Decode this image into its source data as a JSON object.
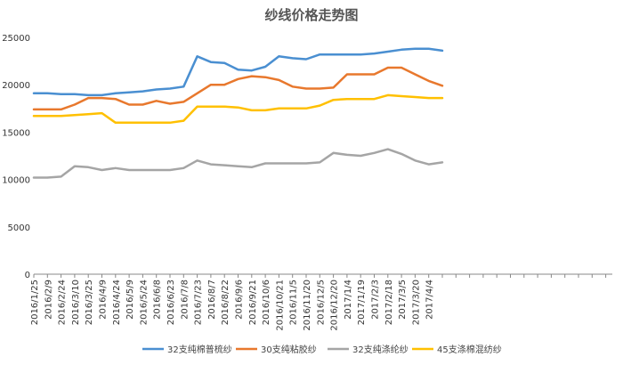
{
  "chart_data": {
    "type": "line",
    "title": "纱线价格走势图",
    "xlabel": "",
    "ylabel": "",
    "ylim": [
      0,
      25000
    ],
    "yticks": [
      0,
      5000,
      10000,
      15000,
      20000,
      25000
    ],
    "y_tick_labels": [
      "0",
      "5000",
      "10000",
      "15000",
      "20000",
      "25000"
    ],
    "grid": false,
    "legend_position": "bottom",
    "x_tick_labels": [
      "2016/1/25",
      "2016/2/9",
      "2016/2/24",
      "2016/3/10",
      "2016/3/25",
      "2016/4/9",
      "2016/4/24",
      "2016/5/9",
      "2016/5/24",
      "2016/6/8",
      "2016/6/23",
      "2016/7/8",
      "2016/7/23",
      "2016/8/7",
      "2016/8/22",
      "2016/9/6",
      "2016/9/21",
      "2016/10/6",
      "2016/10/21",
      "2016/11/5",
      "2016/11/20",
      "2016/12/5",
      "2016/12/20",
      "2017/1/4",
      "2017/1/19",
      "2017/2/3",
      "2017/2/18",
      "2017/3/5",
      "2017/3/20",
      "2017/4/4"
    ],
    "x": [
      "2016/1/25",
      "2016/2/9",
      "2016/2/24",
      "2016/3/10",
      "2016/3/25",
      "2016/4/9",
      "2016/4/24",
      "2016/5/9",
      "2016/5/24",
      "2016/6/8",
      "2016/6/23",
      "2016/7/8",
      "2016/7/23",
      "2016/8/7",
      "2016/8/22",
      "2016/9/6",
      "2016/9/21",
      "2016/10/6",
      "2016/10/21",
      "2016/11/5",
      "2016/11/20",
      "2016/12/5",
      "2016/12/20",
      "2017/1/4",
      "2017/1/19",
      "2017/2/3",
      "2017/2/18",
      "2017/3/5",
      "2017/3/20",
      "2017/4/4",
      "2017/4/15"
    ],
    "series": [
      {
        "name": "32支纯棉普梳纱",
        "color": "#4A8FD1",
        "values": [
          19100,
          19100,
          19000,
          19000,
          18900,
          18900,
          19100,
          19200,
          19300,
          19500,
          19600,
          19800,
          23000,
          22400,
          22300,
          21600,
          21500,
          21900,
          23000,
          22800,
          22700,
          23200,
          23200,
          23200,
          23200,
          23300,
          23500,
          23700,
          23800,
          23800,
          23600
        ]
      },
      {
        "name": "30支纯粘胶纱",
        "color": "#E8782D",
        "values": [
          17400,
          17400,
          17400,
          17900,
          18600,
          18600,
          18500,
          17900,
          17900,
          18300,
          18000,
          18200,
          19100,
          20000,
          20000,
          20600,
          20900,
          20800,
          20500,
          19800,
          19600,
          19600,
          19700,
          21100,
          21100,
          21100,
          21800,
          21800,
          21100,
          20400,
          19900
        ]
      },
      {
        "name": "32支纯涤纶纱",
        "color": "#A5A5A5",
        "values": [
          10200,
          10200,
          10300,
          11400,
          11300,
          11000,
          11200,
          11000,
          11000,
          11000,
          11000,
          11200,
          12000,
          11600,
          11500,
          11400,
          11300,
          11700,
          11700,
          11700,
          11700,
          11800,
          12800,
          12600,
          12500,
          12800,
          13200,
          12700,
          12000,
          11600,
          11800
        ]
      },
      {
        "name": "45支涤棉混纺纱",
        "color": "#FFC000",
        "values": [
          16700,
          16700,
          16700,
          16800,
          16900,
          17000,
          16000,
          16000,
          16000,
          16000,
          16000,
          16200,
          17700,
          17700,
          17700,
          17600,
          17300,
          17300,
          17500,
          17500,
          17500,
          17800,
          18400,
          18500,
          18500,
          18500,
          18900,
          18800,
          18700,
          18600,
          18600
        ]
      }
    ]
  }
}
